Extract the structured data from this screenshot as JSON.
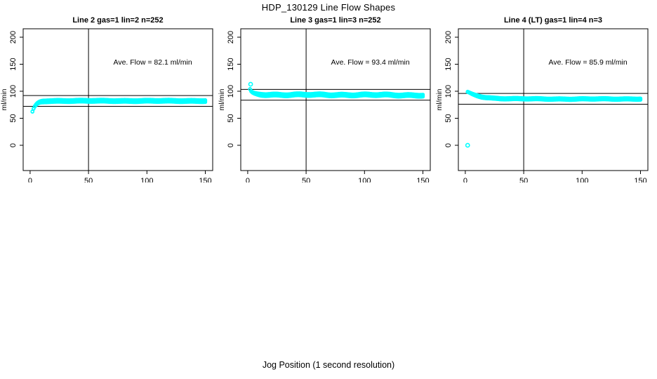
{
  "page": {
    "title": "HDP_130129  Line Flow Shapes",
    "xlabel": "Jog Position (1 second resolution)"
  },
  "colors": {
    "points": "#00FFFF",
    "axis": "#000000",
    "background": "#FFFFFF"
  },
  "chart_data": [
    {
      "type": "scatter",
      "title": "Line 2 gas=1 lin=2 n=252",
      "gas": 1,
      "lin": 2,
      "n": 252,
      "annotation": "Ave. Flow =  82.1  ml/min",
      "ave_flow": 82.1,
      "ylabel": "ml/min",
      "xlim": [
        0,
        150
      ],
      "ylim": [
        0,
        200
      ],
      "xticks": [
        0,
        50,
        100,
        150
      ],
      "yticks": [
        0,
        50,
        100,
        150,
        200
      ],
      "ref_hlines": [
        72.1,
        92.1
      ],
      "ref_vline": 50,
      "grid": false,
      "curve_keypoints": [
        [
          2,
          62
        ],
        [
          3,
          67.5
        ],
        [
          4,
          71.5
        ],
        [
          5,
          74.5
        ],
        [
          6,
          76.8
        ],
        [
          7,
          78.3
        ],
        [
          8,
          79.5
        ],
        [
          9,
          80.3
        ],
        [
          10,
          80.9
        ],
        [
          12,
          81.5
        ],
        [
          15,
          81.9
        ],
        [
          20,
          82.1
        ],
        [
          40,
          82.2
        ],
        [
          80,
          82.1
        ],
        [
          120,
          82.1
        ],
        [
          150,
          82.1
        ]
      ],
      "spread": 2.3,
      "wave_amp": 0.35,
      "outliers": []
    },
    {
      "type": "scatter",
      "title": "Line 3 gas=1 lin=3 n=252",
      "gas": 1,
      "lin": 3,
      "n": 252,
      "annotation": "Ave. Flow =  93.4  ml/min",
      "ave_flow": 93.4,
      "ylabel": "ml/min",
      "xlim": [
        0,
        150
      ],
      "ylim": [
        0,
        200
      ],
      "xticks": [
        0,
        50,
        100,
        150
      ],
      "yticks": [
        0,
        50,
        100,
        150,
        200
      ],
      "ref_hlines": [
        83.4,
        103.4
      ],
      "ref_vline": 50,
      "grid": false,
      "curve_keypoints": [
        [
          2,
          103
        ],
        [
          3,
          99
        ],
        [
          4,
          97
        ],
        [
          5,
          96
        ],
        [
          6,
          95.2
        ],
        [
          8,
          94.5
        ],
        [
          10,
          94.1
        ],
        [
          15,
          93.8
        ],
        [
          25,
          93.6
        ],
        [
          40,
          93.5
        ],
        [
          60,
          93.3
        ],
        [
          80,
          93.4
        ],
        [
          100,
          93.2
        ],
        [
          120,
          93.0
        ],
        [
          135,
          92.8
        ],
        [
          150,
          92.6
        ]
      ],
      "spread": 2.4,
      "wave_amp": 0.8,
      "outliers": [
        [
          2.5,
          113
        ]
      ]
    },
    {
      "type": "scatter",
      "title": "Line 4 (LT) gas=1 lin=4 n=3",
      "gas": 1,
      "lin": 4,
      "n": 3,
      "annotation": "Ave. Flow =  85.9  ml/min",
      "ave_flow": 85.9,
      "ylabel": "ml/min",
      "xlim": [
        0,
        150
      ],
      "ylim": [
        0,
        200
      ],
      "xticks": [
        0,
        50,
        100,
        150
      ],
      "yticks": [
        0,
        50,
        100,
        150,
        200
      ],
      "ref_hlines": [
        75.9,
        95.9
      ],
      "ref_vline": 50,
      "grid": false,
      "curve_keypoints": [
        [
          2,
          98.5
        ],
        [
          4,
          96.5
        ],
        [
          6,
          94.5
        ],
        [
          8,
          93
        ],
        [
          10,
          91.8
        ],
        [
          14,
          89.8
        ],
        [
          18,
          88.4
        ],
        [
          24,
          87.2
        ],
        [
          30,
          86.6
        ],
        [
          40,
          86.1
        ],
        [
          60,
          85.8
        ],
        [
          90,
          85.6
        ],
        [
          120,
          85.7
        ],
        [
          150,
          85.8
        ]
      ],
      "spread": 1.7,
      "wave_amp": 0.4,
      "outliers": [
        [
          2,
          0
        ]
      ]
    }
  ]
}
